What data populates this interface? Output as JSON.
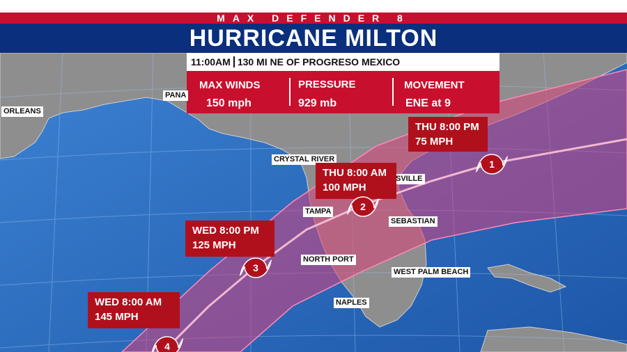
{
  "header": {
    "brand": "MAX DEFENDER 8",
    "title": "HURRICANE MILTON"
  },
  "advisory": {
    "time": "11:00AM",
    "location": "130 MI NE OF PROGRESO MEXICO",
    "max_winds_label": "MAX WINDS",
    "max_winds_value": "150 mph",
    "pressure_label": "PRESSURE",
    "pressure_value": "929 mb",
    "movement_label": "MOVEMENT",
    "movement_value": "ENE at 9"
  },
  "forecast_points": [
    {
      "time": "WED 8:00 AM",
      "wind": "145 MPH",
      "category": "4"
    },
    {
      "time": "WED 8:00 PM",
      "wind": "125 MPH",
      "category": "3"
    },
    {
      "time": "THU 8:00 AM",
      "wind": "100 MPH",
      "category": "2"
    },
    {
      "time": "THU 8:00 PM",
      "wind": "75 MPH",
      "category": "1"
    }
  ],
  "cities": {
    "orleans": "ORLEANS",
    "panama": "PANA",
    "crystal_river": "CRYSTAL RIVER",
    "jacksonville": "SVILLE",
    "tampa": "TAMPA",
    "sebastian": "SEBASTIAN",
    "north_port": "NORTH PORT",
    "west_palm_beach": "WEST PALM BEACH",
    "naples": "NAPLES"
  },
  "colors": {
    "header_red": "#c8102e",
    "header_blue": "#0a2f7c",
    "cone_pink": "#d8427a",
    "land": "#8e8e8e",
    "water": "#2f6fc0"
  }
}
